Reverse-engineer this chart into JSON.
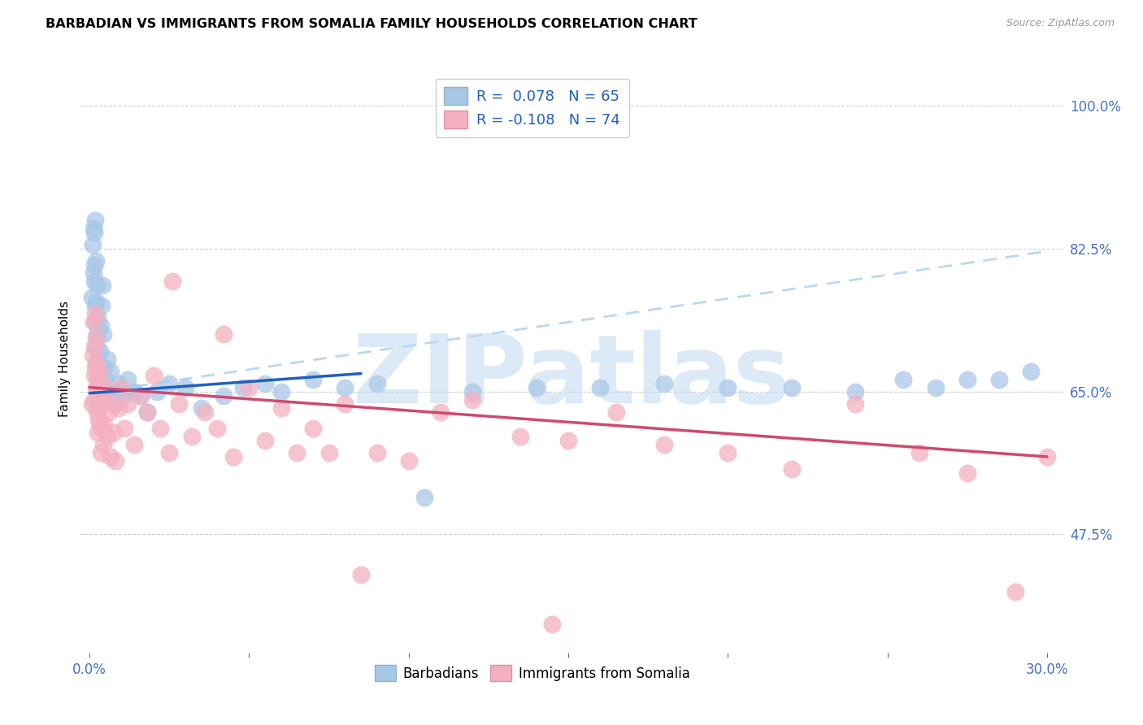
{
  "title": "BARBADIAN VS IMMIGRANTS FROM SOMALIA FAMILY HOUSEHOLDS CORRELATION CHART",
  "source_text": "Source: ZipAtlas.com",
  "ylabel": "Family Households",
  "xlabel_vals": [
    0.0,
    5.0,
    10.0,
    15.0,
    20.0,
    25.0,
    30.0
  ],
  "ylabel_vals": [
    47.5,
    65.0,
    82.5,
    100.0
  ],
  "ylabel_ticks_right": [
    "47.5%",
    "65.0%",
    "82.5%",
    "100.0%"
  ],
  "xlim": [
    -0.3,
    30.5
  ],
  "ylim": [
    33.0,
    105.0
  ],
  "r_blue": 0.078,
  "n_blue": 65,
  "r_pink": -0.108,
  "n_pink": 74,
  "legend_labels_bottom": [
    "Barbadians",
    "Immigrants from Somalia"
  ],
  "blue_scatter_color": "#a8c8e8",
  "pink_scatter_color": "#f4b0c0",
  "blue_line_color": "#2060c0",
  "pink_line_color": "#d04870",
  "dashed_line_color": "#b8d8f4",
  "watermark": "ZIPatlas",
  "watermark_color": "#c0d8f0",
  "blue_line_x0": 0.0,
  "blue_line_x1": 8.5,
  "blue_line_y0": 64.8,
  "blue_line_y1": 67.2,
  "dashed_line_x0": 0.0,
  "dashed_line_x1": 30.0,
  "dashed_line_y0": 64.8,
  "dashed_line_y1": 82.2,
  "pink_line_x0": 0.0,
  "pink_line_x1": 30.0,
  "pink_line_y0": 65.5,
  "pink_line_y1": 57.0,
  "blue_x": [
    0.08,
    0.1,
    0.12,
    0.13,
    0.14,
    0.15,
    0.16,
    0.17,
    0.17,
    0.18,
    0.19,
    0.2,
    0.21,
    0.22,
    0.23,
    0.24,
    0.25,
    0.26,
    0.27,
    0.28,
    0.3,
    0.31,
    0.33,
    0.35,
    0.37,
    0.4,
    0.42,
    0.45,
    0.5,
    0.55,
    0.6,
    0.65,
    0.7,
    0.8,
    0.9,
    1.0,
    1.1,
    1.2,
    1.4,
    1.6,
    1.8,
    2.1,
    2.5,
    3.0,
    3.5,
    4.2,
    4.8,
    5.5,
    6.0,
    7.0,
    8.0,
    9.0,
    10.5,
    12.0,
    14.0,
    16.0,
    18.0,
    20.0,
    22.0,
    24.0,
    25.5,
    26.5,
    27.5,
    28.5,
    29.5
  ],
  "blue_y": [
    76.5,
    83.0,
    79.5,
    85.0,
    80.5,
    84.5,
    78.5,
    73.5,
    86.0,
    75.5,
    81.0,
    70.5,
    76.0,
    72.0,
    78.0,
    68.5,
    74.0,
    66.5,
    69.5,
    72.5,
    64.5,
    67.0,
    70.0,
    73.0,
    75.5,
    78.0,
    72.0,
    68.0,
    66.5,
    69.0,
    65.0,
    67.5,
    64.0,
    63.5,
    66.0,
    65.0,
    64.5,
    66.5,
    65.0,
    64.5,
    62.5,
    65.0,
    66.0,
    65.5,
    63.0,
    64.5,
    65.5,
    66.0,
    65.0,
    66.5,
    65.5,
    66.0,
    52.0,
    65.0,
    65.5,
    65.5,
    66.0,
    65.5,
    65.5,
    65.0,
    66.5,
    65.5,
    66.5,
    66.5,
    67.5
  ],
  "pink_x": [
    0.08,
    0.1,
    0.12,
    0.14,
    0.15,
    0.16,
    0.17,
    0.18,
    0.19,
    0.2,
    0.21,
    0.22,
    0.23,
    0.24,
    0.25,
    0.26,
    0.27,
    0.28,
    0.3,
    0.32,
    0.34,
    0.36,
    0.38,
    0.4,
    0.42,
    0.45,
    0.5,
    0.55,
    0.6,
    0.65,
    0.7,
    0.75,
    0.8,
    0.9,
    1.0,
    1.1,
    1.2,
    1.4,
    1.6,
    1.8,
    2.0,
    2.2,
    2.5,
    2.8,
    3.2,
    3.6,
    4.0,
    4.5,
    5.0,
    5.5,
    6.0,
    6.5,
    7.0,
    7.5,
    8.0,
    9.0,
    10.0,
    11.0,
    12.0,
    13.5,
    15.0,
    16.5,
    18.0,
    20.0,
    22.0,
    24.0,
    26.0,
    27.5,
    29.0,
    30.0,
    2.6,
    4.2,
    8.5,
    14.5
  ],
  "pink_y": [
    63.5,
    69.5,
    73.5,
    67.0,
    70.5,
    64.0,
    74.5,
    68.0,
    71.5,
    65.5,
    68.5,
    62.5,
    65.5,
    60.0,
    63.0,
    66.5,
    61.5,
    64.0,
    67.5,
    61.0,
    57.5,
    63.5,
    60.5,
    64.5,
    58.5,
    61.0,
    65.5,
    59.5,
    62.5,
    57.0,
    63.5,
    60.0,
    56.5,
    63.0,
    65.5,
    60.5,
    63.5,
    58.5,
    64.5,
    62.5,
    67.0,
    60.5,
    57.5,
    63.5,
    59.5,
    62.5,
    60.5,
    57.0,
    65.5,
    59.0,
    63.0,
    57.5,
    60.5,
    57.5,
    63.5,
    57.5,
    56.5,
    62.5,
    64.0,
    59.5,
    59.0,
    62.5,
    58.5,
    57.5,
    55.5,
    63.5,
    57.5,
    55.0,
    40.5,
    57.0,
    78.5,
    72.0,
    42.5,
    36.5
  ]
}
